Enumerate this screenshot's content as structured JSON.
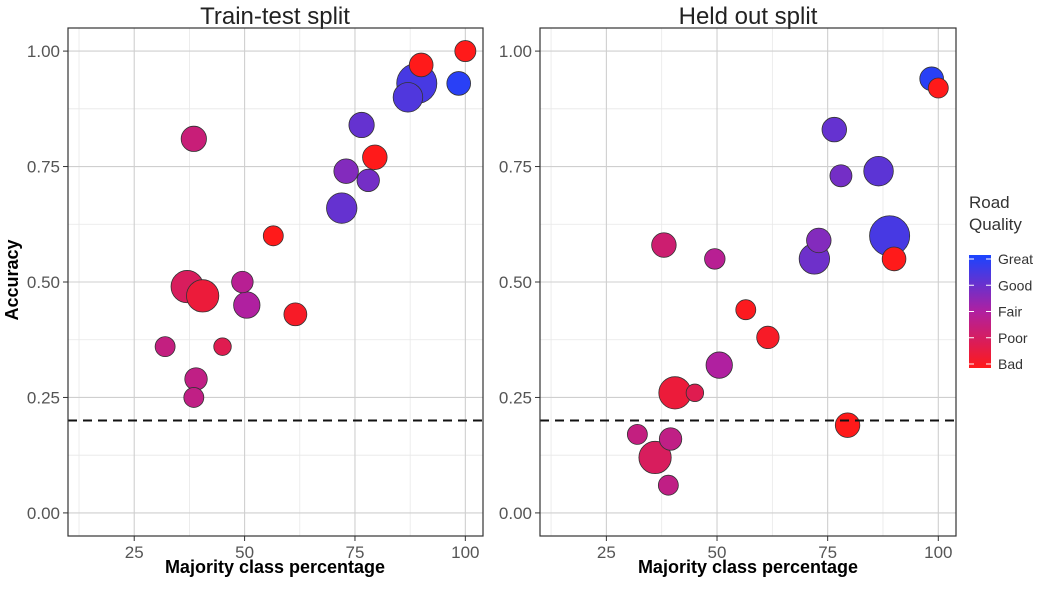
{
  "chart_data": {
    "type": "scatter",
    "xlabel": "Majority class percentage",
    "ylabel": "Accuracy",
    "xlim": [
      10,
      104
    ],
    "ylim": [
      -0.05,
      1.05
    ],
    "x_ticks": [
      25,
      50,
      75,
      100
    ],
    "x_tick_labels": [
      "25",
      "50",
      "75",
      "100"
    ],
    "y_ticks": [
      0,
      0.25,
      0.5,
      0.75,
      1
    ],
    "y_tick_labels": [
      "0.00",
      "0.25",
      "0.50",
      "0.75",
      "1.00"
    ],
    "reference_line": {
      "y": 0.2,
      "style": "dashed"
    },
    "grid": true,
    "legend": {
      "title_line1": "Road",
      "title_line2": "Quality",
      "placement": "right",
      "gradient_colors": [
        "#1a44ff",
        "#ff1a1a"
      ],
      "labels": [
        "Great",
        "Good",
        "Fair",
        "Poor",
        "Bad"
      ],
      "label_fractions": [
        0.0,
        0.25,
        0.5,
        0.75,
        1.0
      ]
    },
    "panels": [
      {
        "title": "Train-test split",
        "points": [
          {
            "x": 100,
            "y": 1.0,
            "quality": 1.0,
            "size": 1.2
          },
          {
            "x": 90,
            "y": 0.97,
            "quality": 1.0,
            "size": 1.8
          },
          {
            "x": 89,
            "y": 0.93,
            "quality": 0.15,
            "size": 8.0
          },
          {
            "x": 98.5,
            "y": 0.93,
            "quality": 0.05,
            "size": 1.8
          },
          {
            "x": 87,
            "y": 0.9,
            "quality": 0.18,
            "size": 3.5
          },
          {
            "x": 76.5,
            "y": 0.84,
            "quality": 0.25,
            "size": 2.2
          },
          {
            "x": 38.5,
            "y": 0.81,
            "quality": 0.65,
            "size": 2.2
          },
          {
            "x": 79.5,
            "y": 0.77,
            "quality": 1.0,
            "size": 2.0
          },
          {
            "x": 73,
            "y": 0.74,
            "quality": 0.35,
            "size": 2.0
          },
          {
            "x": 78,
            "y": 0.72,
            "quality": 0.3,
            "size": 1.5
          },
          {
            "x": 72,
            "y": 0.66,
            "quality": 0.25,
            "size": 3.8
          },
          {
            "x": 56.5,
            "y": 0.6,
            "quality": 1.0,
            "size": 1.0
          },
          {
            "x": 49.5,
            "y": 0.5,
            "quality": 0.55,
            "size": 1.3
          },
          {
            "x": 37,
            "y": 0.49,
            "quality": 0.75,
            "size": 4.5
          },
          {
            "x": 40.5,
            "y": 0.47,
            "quality": 0.88,
            "size": 4.5
          },
          {
            "x": 50.5,
            "y": 0.45,
            "quality": 0.5,
            "size": 2.5
          },
          {
            "x": 61.5,
            "y": 0.43,
            "quality": 0.95,
            "size": 1.6
          },
          {
            "x": 32,
            "y": 0.36,
            "quality": 0.62,
            "size": 1.0
          },
          {
            "x": 45,
            "y": 0.36,
            "quality": 0.8,
            "size": 0.6
          },
          {
            "x": 39,
            "y": 0.29,
            "quality": 0.6,
            "size": 1.5
          },
          {
            "x": 38.5,
            "y": 0.25,
            "quality": 0.6,
            "size": 1.0
          }
        ]
      },
      {
        "title": "Held out split",
        "points": [
          {
            "x": 98.5,
            "y": 0.94,
            "quality": 0.05,
            "size": 1.8
          },
          {
            "x": 100,
            "y": 0.92,
            "quality": 1.0,
            "size": 1.0
          },
          {
            "x": 76.5,
            "y": 0.83,
            "quality": 0.25,
            "size": 2.0
          },
          {
            "x": 86.5,
            "y": 0.74,
            "quality": 0.22,
            "size": 3.5
          },
          {
            "x": 78,
            "y": 0.73,
            "quality": 0.3,
            "size": 1.4
          },
          {
            "x": 89,
            "y": 0.6,
            "quality": 0.15,
            "size": 8.0
          },
          {
            "x": 73,
            "y": 0.59,
            "quality": 0.35,
            "size": 2.0
          },
          {
            "x": 38,
            "y": 0.58,
            "quality": 0.68,
            "size": 2.0
          },
          {
            "x": 72,
            "y": 0.55,
            "quality": 0.28,
            "size": 3.8
          },
          {
            "x": 90,
            "y": 0.55,
            "quality": 1.0,
            "size": 1.8
          },
          {
            "x": 49.5,
            "y": 0.55,
            "quality": 0.55,
            "size": 1.1
          },
          {
            "x": 56.5,
            "y": 0.44,
            "quality": 0.98,
            "size": 1.0
          },
          {
            "x": 61.5,
            "y": 0.38,
            "quality": 0.95,
            "size": 1.5
          },
          {
            "x": 50.5,
            "y": 0.32,
            "quality": 0.5,
            "size": 2.5
          },
          {
            "x": 40.5,
            "y": 0.26,
            "quality": 0.88,
            "size": 4.5
          },
          {
            "x": 45,
            "y": 0.26,
            "quality": 0.8,
            "size": 0.6
          },
          {
            "x": 79.5,
            "y": 0.19,
            "quality": 1.0,
            "size": 2.0
          },
          {
            "x": 32,
            "y": 0.17,
            "quality": 0.62,
            "size": 1.0
          },
          {
            "x": 39.5,
            "y": 0.16,
            "quality": 0.6,
            "size": 1.5
          },
          {
            "x": 36,
            "y": 0.12,
            "quality": 0.75,
            "size": 4.5
          },
          {
            "x": 39,
            "y": 0.06,
            "quality": 0.6,
            "size": 1.0
          }
        ]
      }
    ]
  }
}
